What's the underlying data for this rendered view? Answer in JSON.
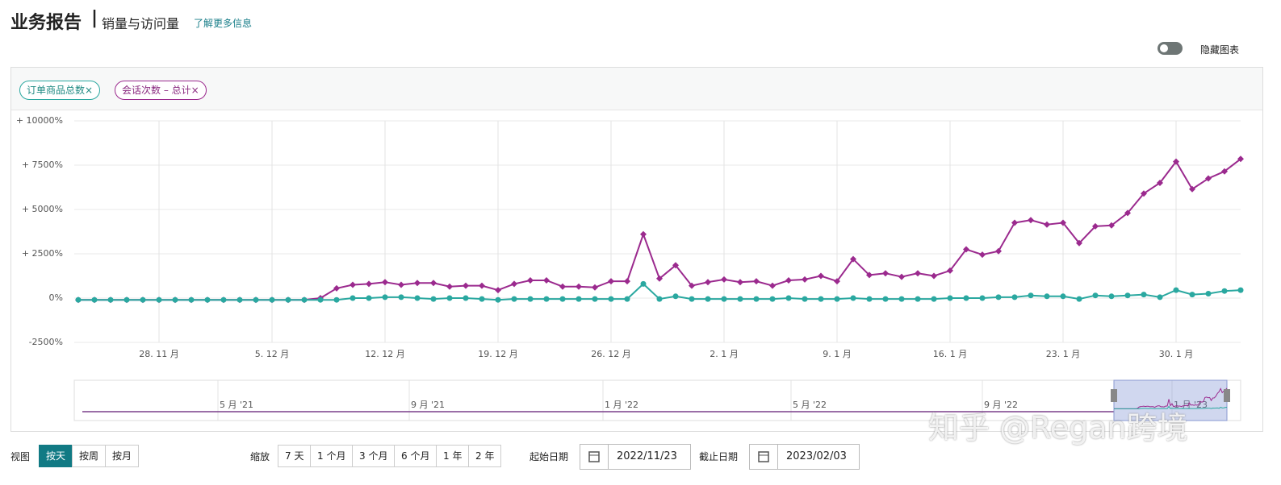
{
  "header": {
    "title": "业务报告",
    "separator": "|",
    "subtitle": "销量与访问量",
    "link": "了解更多信息"
  },
  "toggle": {
    "label": "隐藏图表"
  },
  "chips": [
    {
      "label": "订单商品总数",
      "close": "×"
    },
    {
      "label": "会话次数 – 总计",
      "close": "×"
    }
  ],
  "chart_data": {
    "type": "line",
    "categories": [
      null,
      null,
      null,
      null,
      null,
      "28. 11 月",
      null,
      null,
      null,
      null,
      null,
      null,
      "5. 12 月",
      null,
      null,
      null,
      null,
      null,
      null,
      "12. 12 月",
      null,
      null,
      null,
      null,
      null,
      null,
      "19. 12 月",
      null,
      null,
      null,
      null,
      null,
      null,
      "26. 12 月",
      null,
      null,
      null,
      null,
      null,
      null,
      "2. 1 月",
      null,
      null,
      null,
      null,
      null,
      null,
      "9. 1 月",
      null,
      null,
      null,
      null,
      null,
      null,
      "16. 1 月",
      null,
      null,
      null,
      null,
      null,
      null,
      "23. 1 月",
      null,
      null,
      null,
      null,
      null,
      null,
      "30. 1 月",
      null,
      null,
      null,
      null
    ],
    "series": [
      {
        "name": "订单商品总数",
        "color": "#2aa8a0",
        "marker": "circle",
        "values": [
          -100,
          -100,
          -100,
          -100,
          -100,
          -100,
          -100,
          -100,
          -100,
          -100,
          -100,
          -100,
          -100,
          -100,
          -100,
          -100,
          -100,
          0,
          0,
          50,
          50,
          0,
          -50,
          0,
          0,
          -50,
          -100,
          -50,
          -50,
          -50,
          -50,
          -50,
          -50,
          -50,
          -50,
          800,
          -50,
          100,
          -50,
          -50,
          -50,
          -50,
          -50,
          -50,
          0,
          -50,
          -50,
          -50,
          0,
          -50,
          -50,
          -50,
          -50,
          -50,
          0,
          0,
          0,
          50,
          50,
          150,
          100,
          100,
          -50,
          150,
          100,
          150,
          200,
          50,
          450,
          200,
          250,
          400,
          450
        ]
      },
      {
        "name": "会话次数 – 总计",
        "color": "#9b2a8e",
        "marker": "diamond",
        "values": [
          -100,
          -100,
          -100,
          -100,
          -100,
          -100,
          -100,
          -100,
          -100,
          -100,
          -100,
          -100,
          -100,
          -100,
          -100,
          0,
          550,
          750,
          800,
          900,
          750,
          850,
          850,
          650,
          700,
          700,
          450,
          800,
          1000,
          1000,
          650,
          650,
          600,
          950,
          950,
          3600,
          1100,
          1850,
          700,
          900,
          1050,
          900,
          950,
          700,
          1000,
          1050,
          1250,
          950,
          2200,
          1300,
          1400,
          1200,
          1400,
          1250,
          1550,
          2750,
          2450,
          2650,
          4250,
          4400,
          4150,
          4250,
          3100,
          4050,
          4100,
          4800,
          5900,
          6500,
          7700,
          6150,
          6750,
          7150,
          7850
        ]
      }
    ],
    "ylim": [
      -2500,
      10000
    ],
    "yticks": [
      {
        "value": 10000,
        "label": "+ 10000%"
      },
      {
        "value": 7500,
        "label": "+ 7500%"
      },
      {
        "value": 5000,
        "label": "+ 5000%"
      },
      {
        "value": 2500,
        "label": "+ 2500%"
      },
      {
        "value": 0,
        "label": "0%"
      },
      {
        "value": -2500,
        "label": "-2500%"
      }
    ],
    "grid": true
  },
  "navigator": {
    "labels": [
      "5 月 '21",
      "9 月 '21",
      "1 月 '22",
      "5 月 '22",
      "9 月 '22",
      "1 月 '23"
    ]
  },
  "controls": {
    "view_label": "视图",
    "view_buttons": [
      "按天",
      "按周",
      "按月"
    ],
    "zoom_label": "缩放",
    "zoom_buttons": [
      "7 天",
      "1 个月",
      "3 个月",
      "6 个月",
      "1 年",
      "2 年"
    ],
    "start_label": "起始日期",
    "start_date": "2022/11/23",
    "end_label": "截止日期",
    "end_date": "2023/02/03"
  },
  "watermark": "知乎 @Regan跨境"
}
